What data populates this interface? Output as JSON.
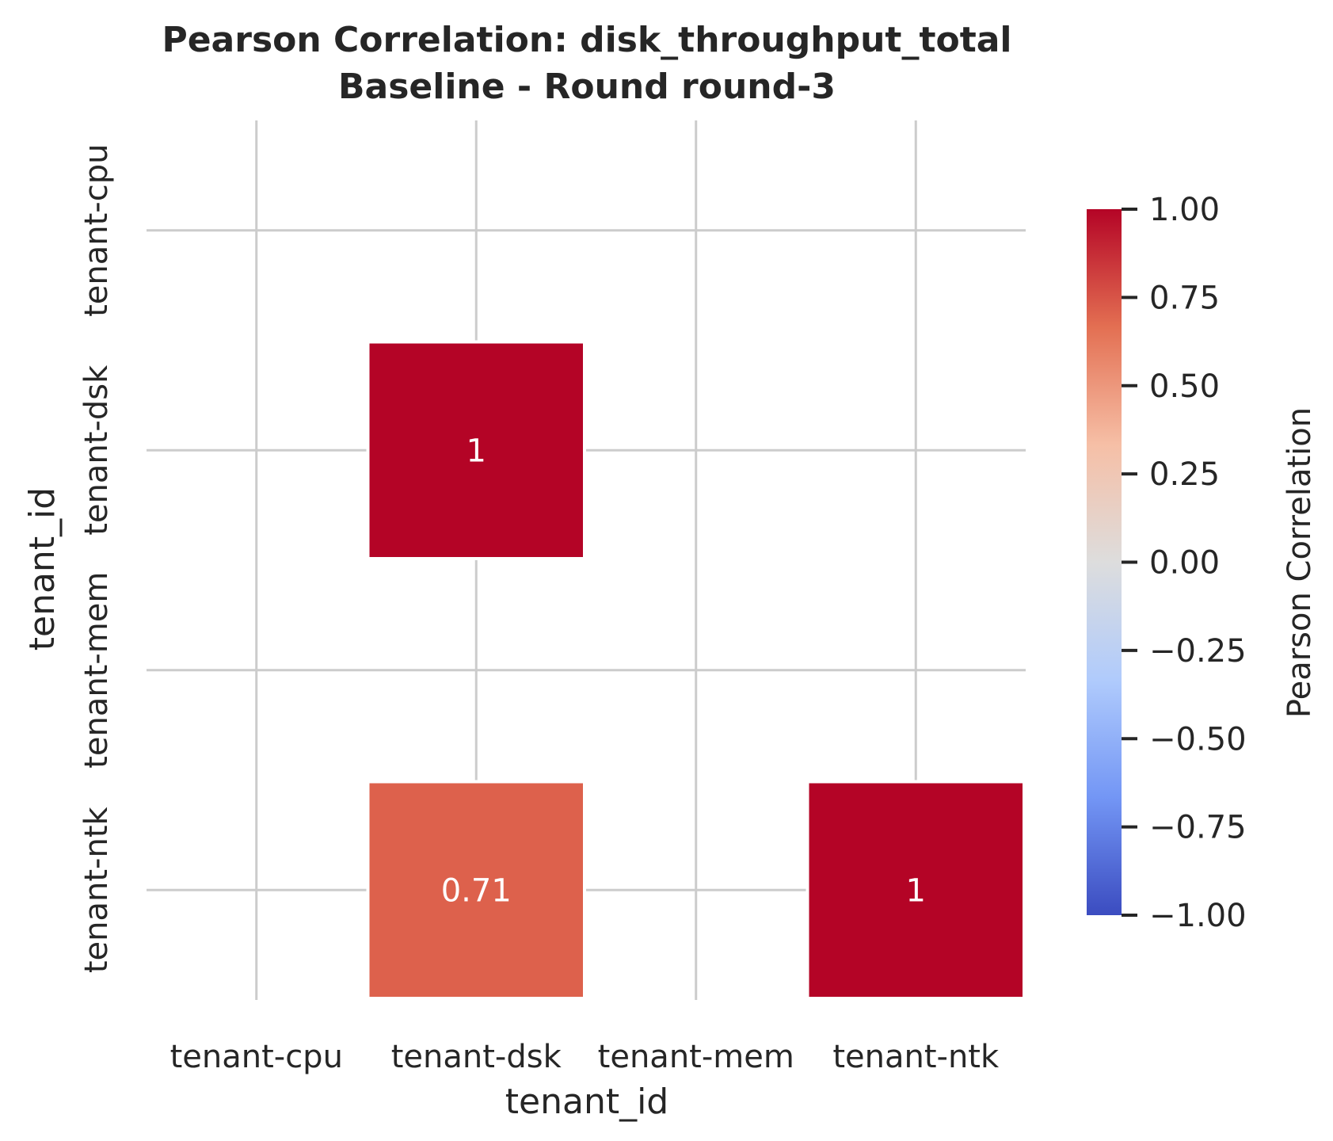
{
  "chart_data": {
    "type": "heatmap",
    "title": "Pearson Correlation: disk_throughput_total",
    "subtitle": "Baseline - Round round-3",
    "xlabel": "tenant_id",
    "ylabel": "tenant_id",
    "x_categories": [
      "tenant-cpu",
      "tenant-dsk",
      "tenant-mem",
      "tenant-ntk"
    ],
    "y_categories": [
      "tenant-cpu",
      "tenant-dsk",
      "tenant-mem",
      "tenant-ntk"
    ],
    "values": [
      [
        null,
        null,
        null,
        null
      ],
      [
        null,
        1.0,
        null,
        null
      ],
      [
        null,
        null,
        null,
        null
      ],
      [
        null,
        0.71,
        null,
        1.0
      ]
    ],
    "annotations": [
      [
        "",
        "",
        "",
        ""
      ],
      [
        "",
        "1",
        "",
        ""
      ],
      [
        "",
        "",
        "",
        ""
      ],
      [
        "",
        "0.71",
        "",
        "1"
      ]
    ],
    "colorbar": {
      "label": "Pearson Correlation",
      "range": [
        -1.0,
        1.0
      ],
      "ticks": [
        "1.00",
        "0.75",
        "0.50",
        "0.25",
        "0.00",
        "−0.25",
        "−0.50",
        "−0.75",
        "−1.00"
      ],
      "tick_values": [
        1.0,
        0.75,
        0.5,
        0.25,
        0.0,
        -0.25,
        -0.5,
        -0.75,
        -1.0
      ],
      "colormap": "coolwarm",
      "colors": [
        "#3b4cc0",
        "#7396f5",
        "#b0cbfc",
        "#dddddd",
        "#f6bfa6",
        "#e36f52",
        "#b40426"
      ]
    },
    "grid": true,
    "mask": "upper-triangle"
  }
}
